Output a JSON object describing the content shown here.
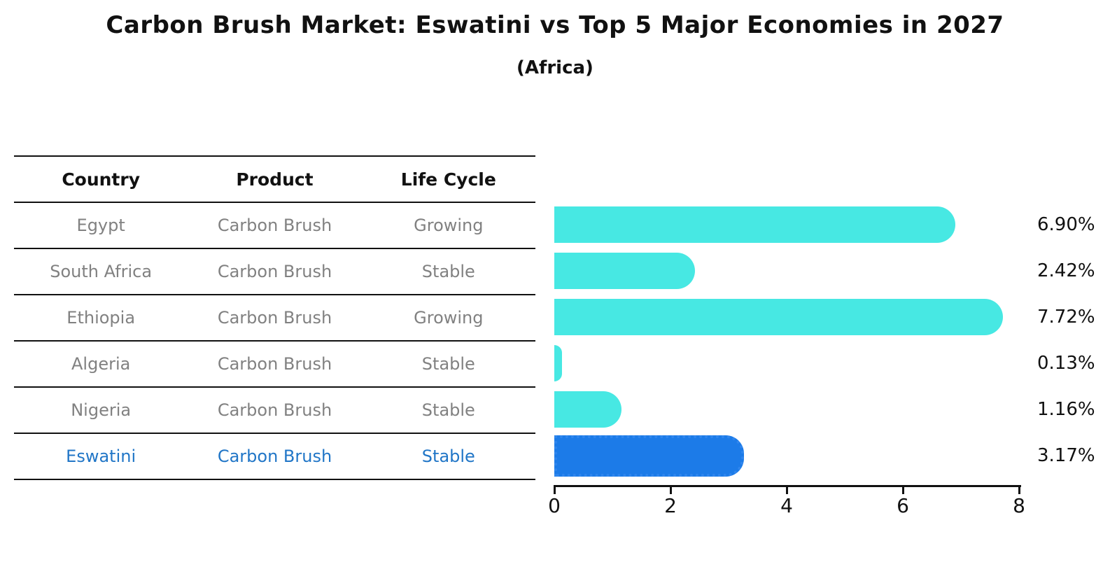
{
  "title": "Carbon Brush Market: Eswatini vs Top 5 Major Economies in 2027",
  "subtitle": "(Africa)",
  "table": {
    "headers": [
      "Country",
      "Product",
      "Life Cycle"
    ],
    "rows": [
      {
        "country": "Egypt",
        "product": "Carbon Brush",
        "life_cycle": "Growing",
        "highlight": false
      },
      {
        "country": "South Africa",
        "product": "Carbon Brush",
        "life_cycle": "Stable",
        "highlight": false
      },
      {
        "country": "Ethiopia",
        "product": "Carbon Brush",
        "life_cycle": "Growing",
        "highlight": false
      },
      {
        "country": "Algeria",
        "product": "Carbon Brush",
        "life_cycle": "Stable",
        "highlight": false
      },
      {
        "country": "Nigeria",
        "product": "Carbon Brush",
        "life_cycle": "Stable",
        "highlight": false
      },
      {
        "country": "Eswatini",
        "product": "Carbon Brush",
        "life_cycle": "Stable",
        "highlight": true
      }
    ]
  },
  "chart_data": {
    "type": "bar",
    "orientation": "horizontal",
    "title": "Carbon Brush Market: Eswatini vs Top 5 Major Economies in 2027",
    "subtitle": "(Africa)",
    "categories": [
      "Egypt",
      "South Africa",
      "Ethiopia",
      "Algeria",
      "Nigeria",
      "Eswatini"
    ],
    "values": [
      6.9,
      2.42,
      7.72,
      0.13,
      1.16,
      3.17
    ],
    "value_labels": [
      "6.90%",
      "2.42%",
      "7.72%",
      "0.13%",
      "1.16%",
      "3.17%"
    ],
    "highlight_index": 5,
    "xlim": [
      0,
      8
    ],
    "x_ticks": [
      "0",
      "2",
      "4",
      "6",
      "8"
    ],
    "grid": false,
    "legend": false,
    "colors": {
      "bar": "#47E8E3",
      "highlight_bar": "#1C7BE8",
      "highlight_border": "#2F86EE",
      "highlight_text": "#2176C7",
      "table_text": "#818181",
      "text": "#111111"
    }
  }
}
